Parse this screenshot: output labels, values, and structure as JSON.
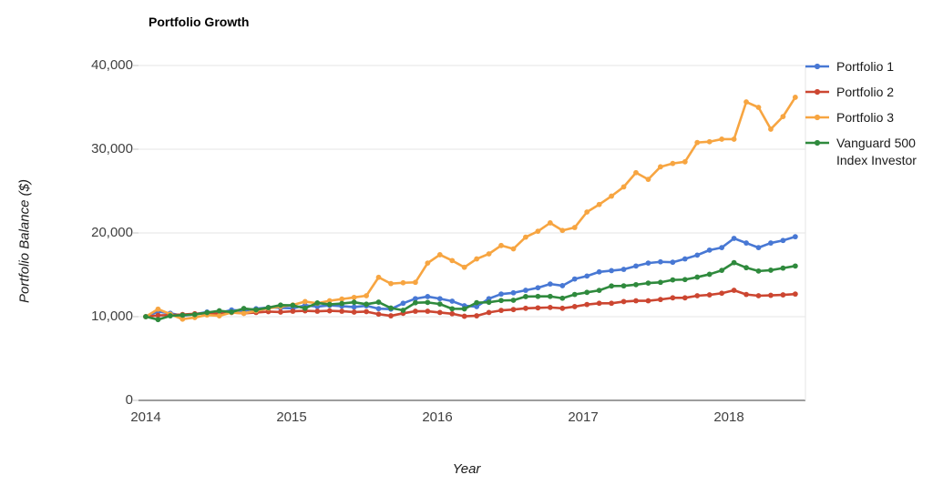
{
  "chart_data": {
    "type": "line",
    "title": "Portfolio Growth",
    "xlabel": "Year",
    "ylabel": "Portfolio Balance ($)",
    "x_ticks": [
      "2014",
      "2015",
      "2016",
      "2017",
      "2018"
    ],
    "y_ticks": [
      "0",
      "10,000",
      "20,000",
      "30,000",
      "40,000"
    ],
    "y_tick_values": [
      0,
      10000,
      20000,
      30000,
      40000
    ],
    "ylim": [
      0,
      40000
    ],
    "xlim_years": [
      2014.0,
      2018.5
    ],
    "x_frequency": "monthly",
    "x_range": "Jan 2014 - Jun 2018",
    "grid": "horizontal",
    "legend_position": "right",
    "series": [
      {
        "name": "Portfolio 1",
        "color": "#4878d4",
        "values": [
          10000,
          10600,
          10400,
          10100,
          10300,
          10550,
          10450,
          10800,
          10700,
          10950,
          11100,
          11050,
          11000,
          11350,
          11200,
          11350,
          11250,
          11150,
          11300,
          10950,
          10900,
          11600,
          12150,
          12400,
          12150,
          11850,
          11300,
          11200,
          12150,
          12700,
          12850,
          13150,
          13450,
          13900,
          13700,
          14500,
          14850,
          15350,
          15500,
          15650,
          16050,
          16400,
          16550,
          16500,
          16900,
          17350,
          17950,
          18250,
          19350,
          18800,
          18250,
          18800,
          19100,
          19550
        ]
      },
      {
        "name": "Portfolio 2",
        "color": "#cc4631",
        "values": [
          10000,
          10150,
          10200,
          10250,
          10350,
          10400,
          10350,
          10500,
          10400,
          10500,
          10600,
          10550,
          10650,
          10700,
          10650,
          10700,
          10650,
          10550,
          10600,
          10300,
          10100,
          10400,
          10650,
          10650,
          10500,
          10350,
          10050,
          10100,
          10500,
          10750,
          10850,
          11000,
          11050,
          11100,
          11000,
          11200,
          11450,
          11600,
          11600,
          11800,
          11900,
          11900,
          12050,
          12250,
          12250,
          12500,
          12600,
          12800,
          13150,
          12650,
          12500,
          12550,
          12600,
          12700
        ]
      },
      {
        "name": "Portfolio 3",
        "color": "#f7a541",
        "values": [
          10000,
          10900,
          10300,
          9700,
          9900,
          10200,
          10100,
          10500,
          10400,
          10700,
          11000,
          11200,
          11400,
          11800,
          11600,
          11900,
          12100,
          12300,
          12500,
          14700,
          13950,
          14050,
          14100,
          16400,
          17400,
          16700,
          15900,
          16900,
          17500,
          18500,
          18100,
          19500,
          20200,
          21200,
          20300,
          20650,
          22500,
          23400,
          24400,
          25500,
          27200,
          26400,
          27900,
          28300,
          28500,
          30800,
          30900,
          31200,
          31200,
          35650,
          35000,
          32400,
          33900,
          36200
        ]
      },
      {
        "name": "Vanguard 500 Index Investor",
        "color": "#2f8a3d",
        "values": [
          10000,
          9650,
          10100,
          10180,
          10250,
          10490,
          10700,
          10550,
          10970,
          10820,
          11080,
          11380,
          11350,
          11010,
          11640,
          11460,
          11570,
          11720,
          11490,
          11730,
          11030,
          10760,
          11660,
          11700,
          11510,
          10940,
          10930,
          11670,
          11720,
          11930,
          11960,
          12400,
          12420,
          12420,
          12200,
          12650,
          12900,
          13140,
          13660,
          13680,
          13820,
          14010,
          14100,
          14390,
          14430,
          14720,
          15060,
          15530,
          16450,
          15850,
          15450,
          15550,
          15800,
          16050
        ]
      }
    ],
    "colors": {
      "grid": "#e6e6e6",
      "baseline": "#7d7d7d",
      "tick_text": "#404040"
    }
  }
}
